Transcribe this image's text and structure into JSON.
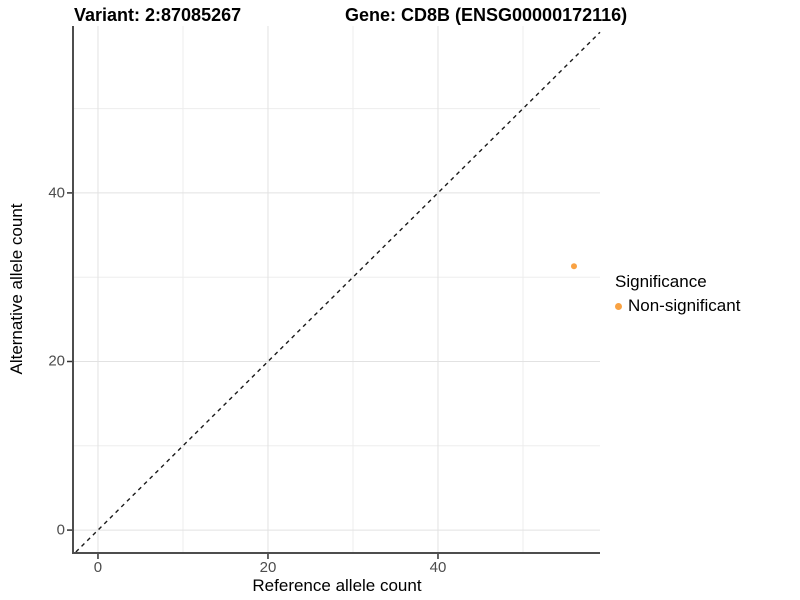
{
  "chart_data": {
    "type": "scatter",
    "titles": {
      "left": "Variant: 2:87085267",
      "right": "Gene: CD8B (ENSG00000172116)"
    },
    "xlabel": "Reference allele count",
    "ylabel": "Alternative allele count",
    "xlim": [
      -2.82,
      59.06
    ],
    "ylim": [
      -2.6,
      59.8
    ],
    "x_major_ticks": [
      0,
      20,
      40
    ],
    "y_major_ticks": [
      0,
      20,
      40
    ],
    "x_minor_gridlines": [
      10,
      30,
      50
    ],
    "y_minor_gridlines": [
      10,
      30,
      50
    ],
    "grid": "major+minor",
    "reference_line": {
      "kind": "identity y=x",
      "style": "dashed",
      "color": "#1a1a1a"
    },
    "series": [
      {
        "name": "Non-significant",
        "color": "#F9A243",
        "point_radius": 3,
        "points": [
          [
            56,
            31.3
          ]
        ]
      }
    ],
    "legend": {
      "title": "Significance",
      "position": "right",
      "entries": [
        {
          "label": "Non-significant",
          "color": "#F9A243"
        }
      ]
    },
    "colors": {
      "panel_background": "#FFFFFF",
      "grid_major": "#E2E2E2",
      "grid_minor": "#EDEDED",
      "axis_line": "#4D4D4D",
      "tick_mark": "#333333",
      "tick_label": "#4D4D4D",
      "title_text": "#000000",
      "point": "#F9A243"
    }
  }
}
